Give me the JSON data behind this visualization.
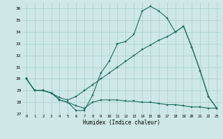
{
  "xlabel": "Humidex (Indice chaleur)",
  "background_color": "#cde8e6",
  "grid_color": "#a8d0cc",
  "line_color": "#1f6b5e",
  "xlim": [
    -0.5,
    23.5
  ],
  "ylim": [
    27,
    36.5
  ],
  "yticks": [
    27,
    28,
    29,
    30,
    31,
    32,
    33,
    34,
    35,
    36
  ],
  "xticks": [
    0,
    1,
    2,
    3,
    4,
    5,
    6,
    7,
    8,
    9,
    10,
    11,
    12,
    13,
    14,
    15,
    16,
    17,
    18,
    19,
    20,
    21,
    22,
    23
  ],
  "line_top_x": [
    0,
    1,
    2,
    3,
    4,
    5,
    6,
    7,
    8,
    9,
    10,
    11,
    12,
    13,
    14,
    15,
    16,
    17,
    18,
    19,
    20,
    21,
    22,
    23
  ],
  "line_top_y": [
    30.0,
    29.0,
    29.0,
    28.8,
    28.2,
    28.0,
    27.3,
    27.3,
    28.6,
    30.5,
    31.5,
    33.0,
    33.2,
    33.8,
    35.8,
    36.2,
    35.8,
    35.2,
    34.0,
    34.5,
    32.7,
    30.7,
    28.5,
    27.5
  ],
  "line_mid_x": [
    0,
    1,
    2,
    3,
    4,
    5,
    6,
    7,
    8,
    9,
    10,
    11,
    12,
    13,
    14,
    15,
    16,
    17,
    18,
    19,
    20,
    21,
    22,
    23
  ],
  "line_mid_y": [
    30.0,
    29.0,
    29.0,
    28.8,
    28.4,
    28.2,
    28.5,
    29.0,
    29.5,
    30.0,
    30.5,
    31.0,
    31.5,
    32.0,
    32.5,
    32.9,
    33.3,
    33.6,
    34.0,
    34.5,
    32.7,
    30.7,
    28.5,
    27.5
  ],
  "line_bot_x": [
    0,
    1,
    2,
    3,
    4,
    5,
    6,
    7,
    8,
    9,
    10,
    11,
    12,
    13,
    14,
    15,
    16,
    17,
    18,
    19,
    20,
    21,
    22,
    23
  ],
  "line_bot_y": [
    30.0,
    29.0,
    29.0,
    28.8,
    28.2,
    28.0,
    27.7,
    27.5,
    28.0,
    28.2,
    28.2,
    28.2,
    28.1,
    28.1,
    28.0,
    28.0,
    27.9,
    27.8,
    27.8,
    27.7,
    27.6,
    27.6,
    27.5,
    27.5
  ]
}
